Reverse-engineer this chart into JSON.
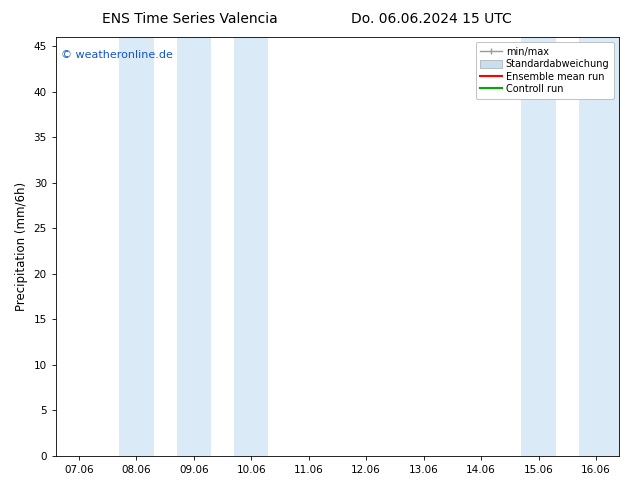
{
  "title_left": "ENS Time Series Valencia",
  "title_right": "Do. 06.06.2024 15 UTC",
  "ylabel": "Precipitation (mm/6h)",
  "watermark": "© weatheronline.de",
  "watermark_color": "#1155cc",
  "x_tick_labels": [
    "07.06",
    "08.06",
    "09.06",
    "10.06",
    "11.06",
    "12.06",
    "13.06",
    "14.06",
    "15.06",
    "16.06"
  ],
  "x_tick_positions": [
    0,
    1,
    2,
    3,
    4,
    5,
    6,
    7,
    8,
    9
  ],
  "ylim": [
    0,
    46
  ],
  "xlim": [
    -0.4,
    9.4
  ],
  "yticks": [
    0,
    5,
    10,
    15,
    20,
    25,
    30,
    35,
    40,
    45
  ],
  "background_color": "#ffffff",
  "plot_bg_color": "#ffffff",
  "shaded_regions": [
    {
      "x_start": 0.7,
      "x_end": 1.3,
      "color": "#daeaf7"
    },
    {
      "x_start": 1.7,
      "x_end": 2.3,
      "color": "#daeaf7"
    },
    {
      "x_start": 2.7,
      "x_end": 3.3,
      "color": "#daeaf7"
    },
    {
      "x_start": 7.7,
      "x_end": 8.3,
      "color": "#daeaf7"
    },
    {
      "x_start": 8.7,
      "x_end": 9.4,
      "color": "#daeaf7"
    }
  ],
  "legend_entries": [
    {
      "label": "min/max",
      "color": "#aaaaaa",
      "style": "errorbar"
    },
    {
      "label": "Standardabweichung",
      "color": "#c8dff0",
      "style": "bar"
    },
    {
      "label": "Ensemble mean run",
      "color": "#ff0000",
      "style": "line"
    },
    {
      "label": "Controll run",
      "color": "#00aa00",
      "style": "line"
    }
  ],
  "title_fontsize": 10,
  "tick_fontsize": 7.5,
  "ylabel_fontsize": 8.5,
  "watermark_fontsize": 8,
  "legend_fontsize": 7
}
